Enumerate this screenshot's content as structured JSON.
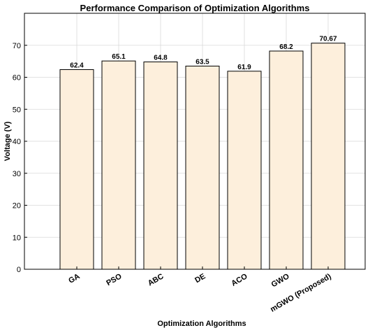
{
  "chart_data": {
    "type": "bar",
    "title": "Performance Comparison of Optimization Algorithms",
    "xlabel": "Optimization Algorithms",
    "ylabel": "Voltage (V)",
    "categories": [
      "GA",
      "PSO",
      "ABC",
      "DE",
      "ACO",
      "GWO",
      "mGWO (Proposed)"
    ],
    "values": [
      62.4,
      65.1,
      64.8,
      63.5,
      61.9,
      68.2,
      70.67
    ],
    "value_labels": [
      "62.4",
      "65.1",
      "64.8",
      "63.5",
      "61.9",
      "68.2",
      "70.67"
    ],
    "ylim": [
      0,
      80
    ],
    "yticks": [
      0,
      10,
      20,
      30,
      40,
      50,
      60,
      70
    ],
    "grid": true,
    "bar_color": "#fdefdc",
    "bar_edge_color": "#000000",
    "grid_color": "#d9d9d9"
  }
}
